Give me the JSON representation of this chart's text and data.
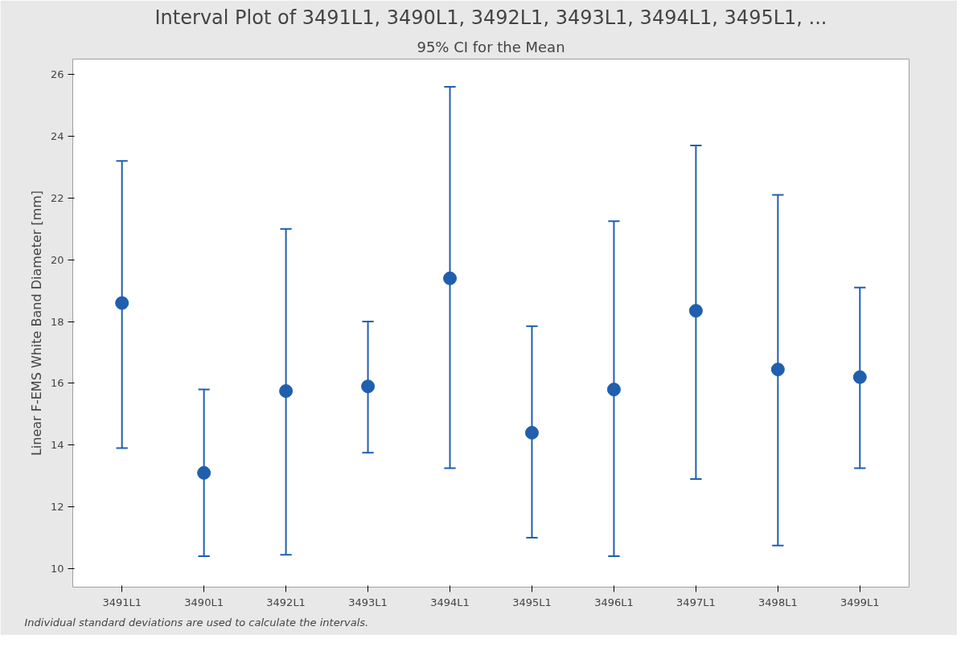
{
  "chart_data": {
    "type": "scatter",
    "title": "Interval Plot of 3491L1, 3490L1, 3492L1, 3493L1, 3494L1, 3495L1, ...",
    "subtitle": "95% CI for the Mean",
    "ylabel": "Linear F-EMS White Band Diameter [mm]",
    "categories": [
      "3491L1",
      "3490L1",
      "3492L1",
      "3493L1",
      "3494L1",
      "3495L1",
      "3496L1",
      "3497L1",
      "3498L1",
      "3499L1"
    ],
    "values": [
      18.6,
      13.1,
      15.75,
      15.9,
      19.4,
      14.4,
      15.8,
      18.35,
      16.45,
      16.2
    ],
    "errors": [
      [
        13.9,
        23.2
      ],
      [
        10.4,
        15.8
      ],
      [
        10.45,
        21.0
      ],
      [
        13.75,
        18.0
      ],
      [
        13.25,
        25.6
      ],
      [
        11.0,
        17.85
      ],
      [
        10.4,
        21.25
      ],
      [
        12.9,
        23.7
      ],
      [
        10.75,
        22.1
      ],
      [
        13.25,
        19.1
      ]
    ],
    "color": "#1f5fae",
    "marker": "circle",
    "grid": false,
    "ylim": [
      9.4,
      26.5
    ],
    "yticks": [
      10,
      12,
      14,
      16,
      18,
      20,
      22,
      24,
      26
    ],
    "annotations": [
      "Individual standard deviations are used to calculate the intervals."
    ]
  }
}
